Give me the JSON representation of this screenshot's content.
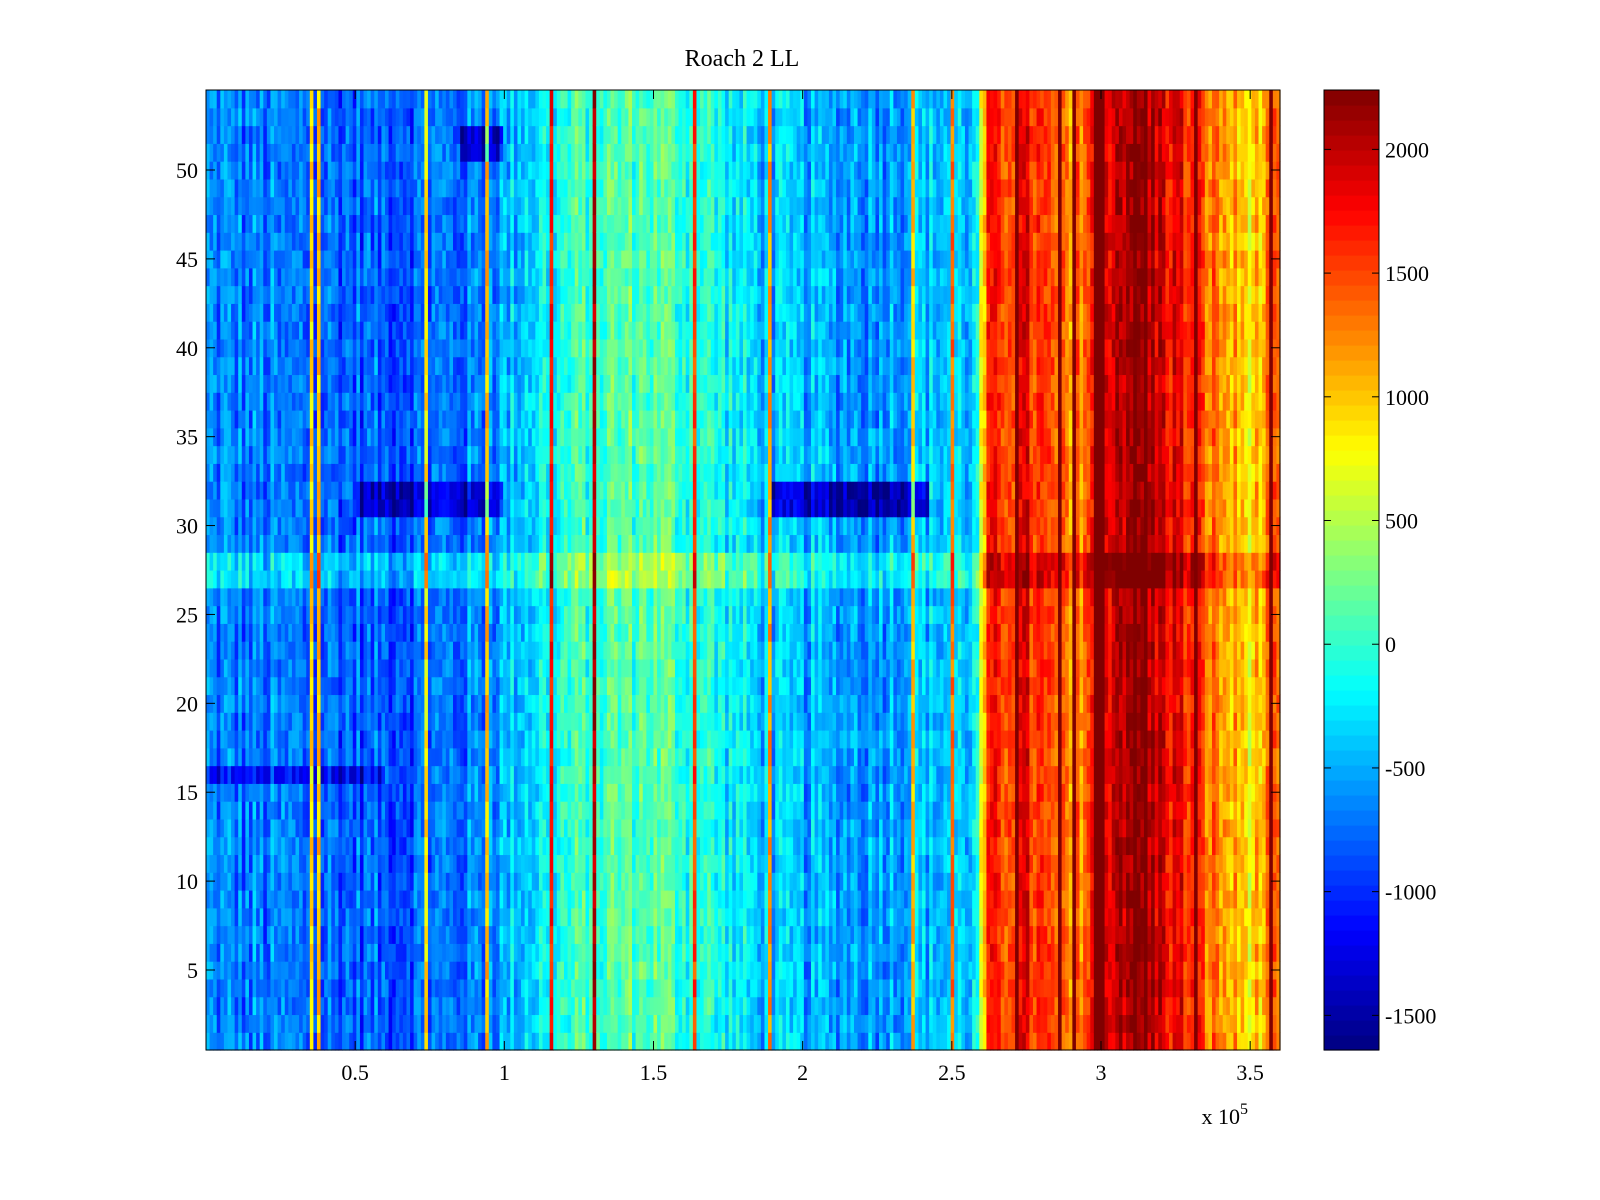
{
  "chart_data": {
    "type": "heatmap",
    "title": "Roach 2 LL",
    "xlabel": "",
    "ylabel": "",
    "x_multiplier_label": {
      "base": "x 10",
      "exponent": "5"
    },
    "xlim": [
      0,
      360000
    ],
    "ylim": [
      0.5,
      54.5
    ],
    "x_ticks": [
      {
        "value": 50000,
        "label": "0.5"
      },
      {
        "value": 100000,
        "label": "1"
      },
      {
        "value": 150000,
        "label": "1.5"
      },
      {
        "value": 200000,
        "label": "2"
      },
      {
        "value": 250000,
        "label": "2.5"
      },
      {
        "value": 300000,
        "label": "3"
      },
      {
        "value": 350000,
        "label": "3.5"
      }
    ],
    "y_ticks": [
      5,
      10,
      15,
      20,
      25,
      30,
      35,
      40,
      45,
      50
    ],
    "colorbar": {
      "colormap": "jet",
      "clim": [
        -1640,
        2240
      ],
      "ticks": [
        -1500,
        -1000,
        -500,
        0,
        500,
        1000,
        1500,
        2000
      ]
    },
    "rows": 54,
    "column_profile": [
      {
        "x": 0,
        "value": -650
      },
      {
        "x": 30000,
        "value": -750
      },
      {
        "x": 60000,
        "value": -800
      },
      {
        "x": 90000,
        "value": -700
      },
      {
        "x": 110000,
        "value": -250
      },
      {
        "x": 130000,
        "value": 100
      },
      {
        "x": 150000,
        "value": 150
      },
      {
        "x": 170000,
        "value": -100
      },
      {
        "x": 190000,
        "value": -450
      },
      {
        "x": 220000,
        "value": -550
      },
      {
        "x": 245000,
        "value": -400
      },
      {
        "x": 258000,
        "value": -350
      },
      {
        "x": 262000,
        "value": 1500
      },
      {
        "x": 275000,
        "value": 1700
      },
      {
        "x": 290000,
        "value": 1100
      },
      {
        "x": 300000,
        "value": 1900
      },
      {
        "x": 310000,
        "value": 2200
      },
      {
        "x": 325000,
        "value": 1800
      },
      {
        "x": 340000,
        "value": 1200
      },
      {
        "x": 350000,
        "value": 900
      },
      {
        "x": 360000,
        "value": 1300
      }
    ],
    "row_effects": [
      {
        "rows": [
          31,
          32
        ],
        "x_range": [
          50000,
          100000
        ],
        "offset": -600
      },
      {
        "rows": [
          31,
          32
        ],
        "x_range": [
          190000,
          242000
        ],
        "offset": -900
      },
      {
        "rows": [
          27,
          28
        ],
        "x_range": [
          0,
          360000
        ],
        "offset": 350
      },
      {
        "rows": [
          16
        ],
        "x_range": [
          0,
          60000
        ],
        "offset": -450
      },
      {
        "rows": [
          51,
          52
        ],
        "x_range": [
          85000,
          100000
        ],
        "offset": -700
      }
    ]
  }
}
